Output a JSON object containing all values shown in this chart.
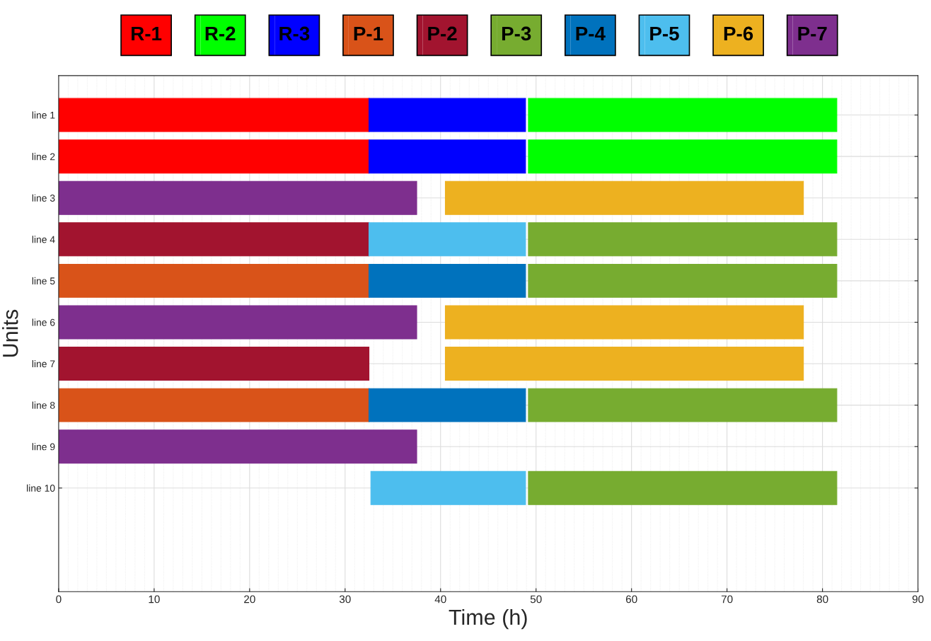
{
  "chart_data": {
    "type": "bar",
    "orientation": "horizontal",
    "xlabel": "Time (h)",
    "ylabel": "Units",
    "categories": [
      "line 1",
      "line 2",
      "line 3",
      "line 4",
      "line 5",
      "line 6",
      "line 7",
      "line 8",
      "line 9",
      "line 10"
    ],
    "xlim": [
      0,
      90
    ],
    "xticks": [
      0,
      10,
      20,
      30,
      40,
      50,
      60,
      70,
      80,
      90
    ],
    "grid": true,
    "legend": "top",
    "series": [
      {
        "name": "R-1",
        "color": "#ff0000",
        "base": [
          0,
          0,
          null,
          null,
          null,
          null,
          null,
          null,
          null,
          null
        ],
        "values": [
          32.5,
          32.5,
          null,
          null,
          null,
          null,
          null,
          null,
          null,
          null
        ]
      },
      {
        "name": "R-2",
        "color": "#00ff00",
        "base": [
          49.2,
          49.2,
          null,
          null,
          null,
          null,
          null,
          null,
          null,
          null
        ],
        "values": [
          32.3,
          32.3,
          null,
          null,
          null,
          null,
          null,
          null,
          null,
          null
        ]
      },
      {
        "name": "R-3",
        "color": "#0000ff",
        "base": [
          32.5,
          32.5,
          null,
          null,
          null,
          null,
          null,
          null,
          null,
          null
        ],
        "values": [
          16.4,
          16.4,
          null,
          null,
          null,
          null,
          null,
          null,
          null,
          null
        ]
      },
      {
        "name": "P-1",
        "color": "#d95319",
        "base": [
          null,
          null,
          null,
          null,
          0,
          null,
          null,
          0,
          null,
          null
        ],
        "values": [
          null,
          null,
          null,
          null,
          32.5,
          null,
          null,
          32.5,
          null,
          null
        ]
      },
      {
        "name": "P-2",
        "color": "#a2142f",
        "base": [
          null,
          null,
          null,
          0,
          null,
          null,
          0,
          null,
          null,
          null
        ],
        "values": [
          null,
          null,
          null,
          32.5,
          null,
          null,
          32.5,
          null,
          null,
          null
        ]
      },
      {
        "name": "P-3",
        "color": "#77ac30",
        "base": [
          null,
          null,
          null,
          49.2,
          49.2,
          null,
          null,
          49.2,
          null,
          49.2
        ],
        "values": [
          null,
          null,
          null,
          32.3,
          32.3,
          null,
          null,
          32.3,
          null,
          32.3
        ]
      },
      {
        "name": "P-4",
        "color": "#0072bd",
        "base": [
          null,
          null,
          null,
          null,
          32.5,
          null,
          null,
          32.5,
          null,
          null
        ],
        "values": [
          null,
          null,
          null,
          null,
          16.4,
          null,
          null,
          16.4,
          null,
          null
        ]
      },
      {
        "name": "P-5",
        "color": "#4dbeee",
        "base": [
          null,
          null,
          null,
          32.5,
          null,
          null,
          null,
          null,
          null,
          32.7
        ],
        "values": [
          null,
          null,
          null,
          16.4,
          null,
          null,
          null,
          null,
          null,
          16.2
        ]
      },
      {
        "name": "P-6",
        "color": "#edb120",
        "base": [
          null,
          null,
          40.5,
          null,
          null,
          40.5,
          40.5,
          null,
          null,
          null
        ],
        "values": [
          null,
          null,
          37.5,
          null,
          null,
          37.5,
          37.5,
          null,
          null,
          null
        ]
      },
      {
        "name": "P-7",
        "color": "#7e2f8e",
        "base": [
          null,
          null,
          0,
          null,
          null,
          0,
          null,
          null,
          0,
          null
        ],
        "values": [
          null,
          null,
          37.5,
          null,
          null,
          37.5,
          null,
          null,
          37.5,
          null
        ]
      }
    ]
  }
}
